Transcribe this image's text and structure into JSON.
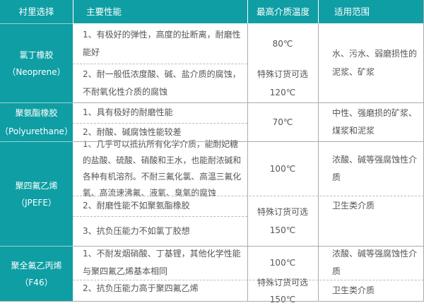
{
  "header": [
    "衬里选择",
    "主要性能",
    "最高介质温度",
    "适用范围"
  ],
  "colors": {
    "header_bg": "#0e9ea4"
  },
  "rows": [
    {
      "lining": [
        "氯丁橡胶",
        "（Neoprene）"
      ],
      "props": [
        "1、有极好的弹性，高度的扯断离，耐磨性能好",
        "2、耐一般低浓度酸、碱、盐介质的腐蚀，不耐氧化性介质的腐蚀"
      ],
      "temps": [
        "80℃",
        "特殊订货可选",
        "120℃"
      ],
      "use": [
        "水、污水、弱磨损性的泥浆、矿浆"
      ]
    },
    {
      "lining": [
        "聚氨酯橡胶",
        "（Polyurethane）"
      ],
      "props": [
        "1、具有极好的耐磨性能",
        "2、耐酸、碱腐蚀性能较差"
      ],
      "temps": [
        "70℃"
      ],
      "use": [
        "中性、强磨损的矿浆、煤浆和泥浆"
      ]
    },
    {
      "lining": [
        "聚四氟乙烯",
        "（JPEFE）"
      ],
      "props": [
        "1、几乎可以抵抗所有化学介质，能耐妃糖的盐酸、硫酸、硝酸和王水，也能耐浓碱和各种有机溶剂。不耐三氟化氯、高温三氟化氧、高流速沸氟、液氧、臭氧的腐蚀",
        "2、耐磨性能不如聚氨酯橡胶",
        "3、抗负压能力不如氯丁胶想"
      ],
      "temps": [
        "100℃",
        "特殊订货可选",
        "150℃"
      ],
      "use": [
        "浓酸、碱等强腐蚀性介质",
        "卫生类介质"
      ]
    },
    {
      "lining": [
        "聚全氟乙丙烯",
        "（F46）"
      ],
      "props": [
        "1、不耐发烟硝酸、丁基锂，其他化学性能与聚四氟乙烯基本相同",
        "2、抗负压能力高于聚四氟乙烯"
      ],
      "temps": [
        "100℃",
        "特殊订货可选",
        "150℃"
      ],
      "use": [
        "浓酸、碱等强腐蚀性介质",
        "卫生类介质"
      ]
    }
  ]
}
